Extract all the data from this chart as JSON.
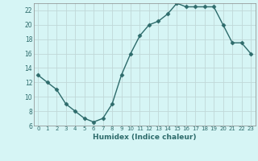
{
  "x": [
    0,
    1,
    2,
    3,
    4,
    5,
    6,
    7,
    8,
    9,
    10,
    11,
    12,
    13,
    14,
    15,
    16,
    17,
    18,
    19,
    20,
    21,
    22,
    23
  ],
  "y": [
    13,
    12,
    11,
    9,
    8,
    7,
    6.5,
    7,
    9,
    13,
    16,
    18.5,
    20,
    20.5,
    21.5,
    23,
    22.5,
    22.5,
    22.5,
    22.5,
    20,
    17.5,
    17.5,
    16
  ],
  "xlabel": "Humidex (Indice chaleur)",
  "line_color": "#2d6b6b",
  "marker": "D",
  "marker_size": 2.5,
  "bg_color": "#d6f5f5",
  "grid_color": "#c0d8d8",
  "xlim": [
    -0.5,
    23.5
  ],
  "ylim": [
    6,
    23
  ],
  "xticks": [
    0,
    1,
    2,
    3,
    4,
    5,
    6,
    7,
    8,
    9,
    10,
    11,
    12,
    13,
    14,
    15,
    16,
    17,
    18,
    19,
    20,
    21,
    22,
    23
  ],
  "yticks": [
    6,
    8,
    10,
    12,
    14,
    16,
    18,
    20,
    22
  ]
}
